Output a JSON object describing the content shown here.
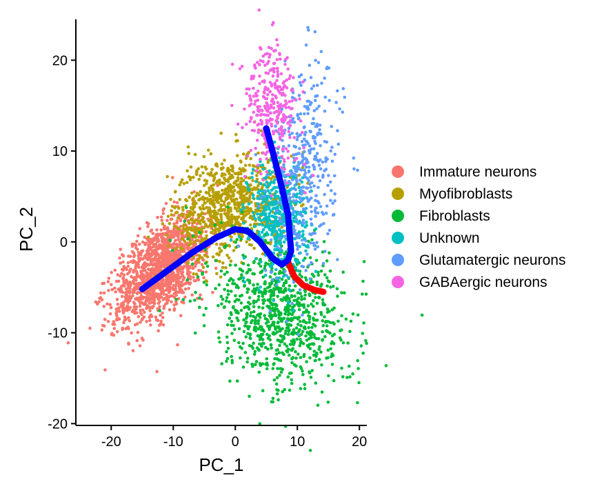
{
  "chart_data": {
    "type": "scatter",
    "xlabel": "PC_1",
    "ylabel": "PC_2",
    "xlim": [
      -25,
      22
    ],
    "ylim": [
      -20,
      25
    ],
    "x_ticks": [
      -20,
      -10,
      0,
      10,
      20
    ],
    "x_tick_labels": [
      "-20",
      "-10",
      "0",
      "10",
      "20"
    ],
    "y_ticks": [
      -20,
      -10,
      0,
      10,
      20
    ],
    "y_tick_labels": [
      "-20",
      "-10",
      "0",
      "10",
      "20"
    ],
    "grid": false,
    "legend_placement": "right",
    "series": [
      {
        "name": "Immature neurons",
        "color": "#F8766D",
        "center": [
          -12,
          -3
        ],
        "spread": [
          4.2,
          2.2
        ],
        "count": 1400,
        "rotation_deg": 32
      },
      {
        "name": "Myofibroblasts",
        "color": "#B79F00",
        "center": [
          -1,
          4
        ],
        "spread": [
          4.5,
          2.8
        ],
        "count": 900,
        "rotation_deg": 12
      },
      {
        "name": "Fibroblasts",
        "color": "#00BA38",
        "center": [
          7,
          -8
        ],
        "spread": [
          6,
          3.6
        ],
        "count": 900,
        "rotation_deg": -20
      },
      {
        "name": "Unknown",
        "color": "#00BFC4",
        "center": [
          7,
          3
        ],
        "spread": [
          2.3,
          3
        ],
        "count": 450,
        "rotation_deg": 0
      },
      {
        "name": "Glutamatergic neurons",
        "color": "#619CFF",
        "center": [
          11,
          7
        ],
        "spread": [
          2.6,
          6
        ],
        "count": 420,
        "rotation_deg": -8
      },
      {
        "name": "GABAergic neurons",
        "color": "#F564E3",
        "center": [
          6,
          15
        ],
        "spread": [
          2.2,
          3.5
        ],
        "count": 320,
        "rotation_deg": 10
      }
    ],
    "trajectories": [
      {
        "color": "#0000FF",
        "points": [
          [
            -15,
            -5.2
          ],
          [
            -11,
            -3.2
          ],
          [
            -7,
            -1.2
          ],
          [
            -3,
            0.5
          ],
          [
            0,
            1.4
          ],
          [
            2,
            1.2
          ],
          [
            4,
            0
          ],
          [
            6,
            -1.8
          ],
          [
            7.5,
            -2.5
          ],
          [
            8.5,
            -2
          ],
          [
            9,
            -1
          ],
          [
            8.5,
            3
          ],
          [
            7.5,
            6
          ],
          [
            6,
            10
          ],
          [
            5,
            12.5
          ]
        ]
      },
      {
        "color": "#FF0000",
        "points": [
          [
            8.5,
            -2.2
          ],
          [
            9.5,
            -3.8
          ],
          [
            11,
            -4.8
          ],
          [
            12.8,
            -5.3
          ],
          [
            14.2,
            -5.5
          ]
        ]
      }
    ]
  }
}
